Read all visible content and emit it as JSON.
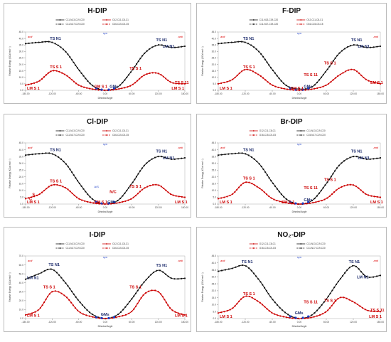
{
  "figure": {
    "x_axis_label": "Dihedral Angle",
    "y_axis_label": "Relative Energy (KCal mol⁻¹)",
    "x_ticks": [
      "-180.00",
      "-120.00",
      "-60.00",
      "0.00",
      "60.00",
      "120.00",
      "180.00"
    ],
    "colors": {
      "black_series": "#111111",
      "red_series": "#cc0000",
      "blue_point": "#1a3cc7",
      "label_black": "#1b2a6b",
      "label_red": "#cc0000"
    }
  },
  "panels": [
    {
      "title": "H-DIP",
      "y_ticks": [
        "45.0",
        "40.0",
        "35.0",
        "30.0",
        "25.0",
        "20.0",
        "15.0",
        "10.0",
        "5.0",
        "0.0"
      ],
      "legend": [
        "C11-N13-C19-C20",
        "O12-C11-C8-C1",
        "C11-N17-C19-C20",
        "O16-C15-C5-C5"
      ],
      "region_labels": {
        "left": "anti",
        "center": "syn",
        "right": "anti"
      },
      "labels": [
        "TS N1",
        "TS N1",
        "LM N1",
        "TS S 1",
        "TS S 1",
        "TS S 11",
        "GM S 1",
        "GMs",
        "LM S 1",
        "LM S 1"
      ]
    },
    {
      "title": "F-DIP",
      "y_ticks": [
        "45.0",
        "40.0",
        "35.0",
        "30.0",
        "25.0",
        "20.0",
        "15.0",
        "10.0",
        "5.0",
        "0.0"
      ],
      "legend": [
        "C11-N13-C19-C20",
        "O12-C11-C8-C1",
        "C11-N17-C19-C20",
        "O16-C15-C5-C5"
      ],
      "region_labels": {
        "left": "anti",
        "center": "syn",
        "right": "anti"
      },
      "labels": [
        "TS N1",
        "TS N1",
        "LM N1",
        "TS S 1",
        "TS S 1",
        "TS S 11",
        "GM S 1",
        "GMs",
        "LM S 1",
        "LM S 1"
      ]
    },
    {
      "title": "Cl-DIP",
      "y_ticks": [
        "45.0",
        "40.0",
        "35.0",
        "30.0",
        "25.0",
        "20.0",
        "15.0",
        "10.0",
        "5.0",
        "0.0"
      ],
      "legend": [
        "C11-N13-C19-C20",
        "O12-C11-C8-C1",
        "C11-N17-C19-C20",
        "O16-C15-C5-C5"
      ],
      "region_labels": {
        "left": "anti",
        "center": "syn",
        "right": "anti"
      },
      "labels": [
        "TS N1",
        "TS N1",
        "LM N1",
        "TS S 1",
        "TS S 1",
        "LM S 1",
        "GM S 1",
        "GMs",
        "LM S 1",
        "N/C",
        "A/S",
        "S",
        "C"
      ]
    },
    {
      "title": "Br-DIP",
      "y_ticks": [
        "45.0",
        "40.0",
        "35.0",
        "30.0",
        "25.0",
        "20.0",
        "15.0",
        "10.0",
        "5.0",
        "0.0"
      ],
      "legend": [
        "O12-C11-C8-C1",
        "C11-N13-C19-C20",
        "O16-C15-C5-C5",
        "C15-N17-C19-C20"
      ],
      "region_labels": {
        "left": "anti",
        "center": "syn",
        "right": "anti"
      },
      "labels": [
        "TS N1",
        "TS N1",
        "LM N1",
        "TS S 1",
        "TS S 1",
        "TS S 11",
        "GM S 1",
        "GMs",
        "LM S 1",
        "LM S 1"
      ]
    },
    {
      "title": "I-DIP",
      "y_ticks": [
        "70.0",
        "60.0",
        "50.0",
        "40.0",
        "30.0",
        "20.0",
        "10.0",
        "0.0"
      ],
      "legend": [
        "C11-N13-C19-C20",
        "O12-C11-C8-C1",
        "C11-N17-C19-C20",
        "O16-C15-C5-C5"
      ],
      "region_labels": {
        "left": "anti",
        "center": "syn",
        "right": "anti"
      },
      "labels": [
        "TS N1",
        "TS N1",
        "LM N1",
        "TS S 1",
        "TS S 1",
        "GMs",
        "LM S 1",
        "LM S 1"
      ]
    },
    {
      "title": "NO₂-DIP",
      "y_ticks": [
        "45.0",
        "40.0",
        "35.0",
        "30.0",
        "25.0",
        "20.0",
        "15.0",
        "10.0",
        "5.0",
        "0.0"
      ],
      "legend": [
        "O12-C11-C8-C1",
        "C11-N13-C19-C20",
        "O16-C15-C5-C5",
        "C11-N17-C19-C20"
      ],
      "region_labels": {
        "left": "anti",
        "center": "syn",
        "right": "anti"
      },
      "labels": [
        "TS N1",
        "TS N1",
        "LM N1",
        "TS S 1",
        "TS S 1",
        "TS S 11",
        "GMs",
        "LM S 1",
        "LM S 1",
        "TS S 11"
      ]
    }
  ],
  "chart_data": [
    {
      "type": "line",
      "title": "H-DIP",
      "ylim": [
        0,
        45
      ],
      "x": [
        -180,
        -150,
        -120,
        -90,
        -60,
        -30,
        0,
        30,
        60,
        90,
        120,
        150,
        180
      ],
      "series": [
        {
          "name": "C11-N13-C19-C20",
          "values": [
            36,
            37,
            37,
            30,
            16,
            4,
            0,
            3,
            15,
            29,
            35,
            33,
            34
          ]
        },
        {
          "name": "O12-C11-C8-C1",
          "values": [
            4,
            7,
            15,
            12,
            4,
            1,
            0,
            1,
            4,
            12,
            13,
            6,
            5
          ]
        }
      ]
    },
    {
      "type": "line",
      "title": "F-DIP",
      "ylim": [
        0,
        45
      ],
      "x": [
        -180,
        -150,
        -120,
        -90,
        -60,
        -30,
        0,
        30,
        60,
        90,
        120,
        150,
        180
      ],
      "series": [
        {
          "name": "C11-N13-C19-C20",
          "values": [
            36,
            37,
            37,
            30,
            16,
            4,
            1,
            3,
            15,
            29,
            35,
            33,
            34
          ]
        },
        {
          "name": "O12-C11-C8-C1",
          "values": [
            5,
            8,
            16,
            12,
            4,
            1,
            0,
            1,
            4,
            12,
            16,
            8,
            5
          ]
        }
      ]
    },
    {
      "type": "line",
      "title": "Cl-DIP",
      "ylim": [
        0,
        45
      ],
      "x": [
        -180,
        -150,
        -120,
        -90,
        -60,
        -30,
        0,
        30,
        60,
        90,
        120,
        150,
        180
      ],
      "series": [
        {
          "name": "C11-N13-C19-C20",
          "values": [
            36,
            37,
            37,
            30,
            16,
            4,
            0,
            3,
            15,
            29,
            35,
            33,
            34
          ]
        },
        {
          "name": "O12-C11-C8-C1",
          "values": [
            4,
            7,
            14,
            12,
            4,
            1,
            0,
            1,
            4,
            12,
            14,
            7,
            5
          ]
        }
      ]
    },
    {
      "type": "line",
      "title": "Br-DIP",
      "ylim": [
        0,
        45
      ],
      "x": [
        -180,
        -150,
        -120,
        -90,
        -60,
        -30,
        0,
        30,
        60,
        90,
        120,
        150,
        180
      ],
      "series": [
        {
          "name": "C11-N13-C19-C20",
          "values": [
            36,
            37,
            37,
            30,
            16,
            4,
            0,
            3,
            15,
            29,
            35,
            33,
            34
          ]
        },
        {
          "name": "O12-C11-C8-C1",
          "values": [
            4,
            7,
            16,
            12,
            4,
            1,
            0,
            1,
            4,
            12,
            14,
            7,
            5
          ]
        }
      ]
    },
    {
      "type": "line",
      "title": "I-DIP",
      "ylim": [
        0,
        70
      ],
      "x": [
        -180,
        -150,
        -120,
        -90,
        -60,
        -30,
        0,
        30,
        60,
        90,
        120,
        150,
        180
      ],
      "series": [
        {
          "name": "C11-N13-C19-C20",
          "values": [
            44,
            50,
            55,
            40,
            20,
            5,
            0,
            5,
            22,
            42,
            54,
            45,
            45
          ]
        },
        {
          "name": "O12-C11-C8-C1",
          "values": [
            4,
            10,
            30,
            25,
            8,
            2,
            0,
            2,
            8,
            28,
            30,
            10,
            4
          ]
        }
      ]
    },
    {
      "type": "line",
      "title": "NO₂-DIP",
      "ylim": [
        0,
        45
      ],
      "x": [
        -180,
        -150,
        -120,
        -90,
        -60,
        -30,
        0,
        30,
        60,
        90,
        120,
        150,
        180
      ],
      "series": [
        {
          "name": "C11-N13-C19-C20",
          "values": [
            34,
            36,
            38,
            28,
            14,
            4,
            0,
            3,
            14,
            28,
            38,
            30,
            31
          ]
        },
        {
          "name": "O12-C11-C8-C1",
          "values": [
            4,
            7,
            16,
            12,
            4,
            1,
            0,
            1,
            5,
            15,
            12,
            6,
            5
          ]
        }
      ]
    }
  ]
}
